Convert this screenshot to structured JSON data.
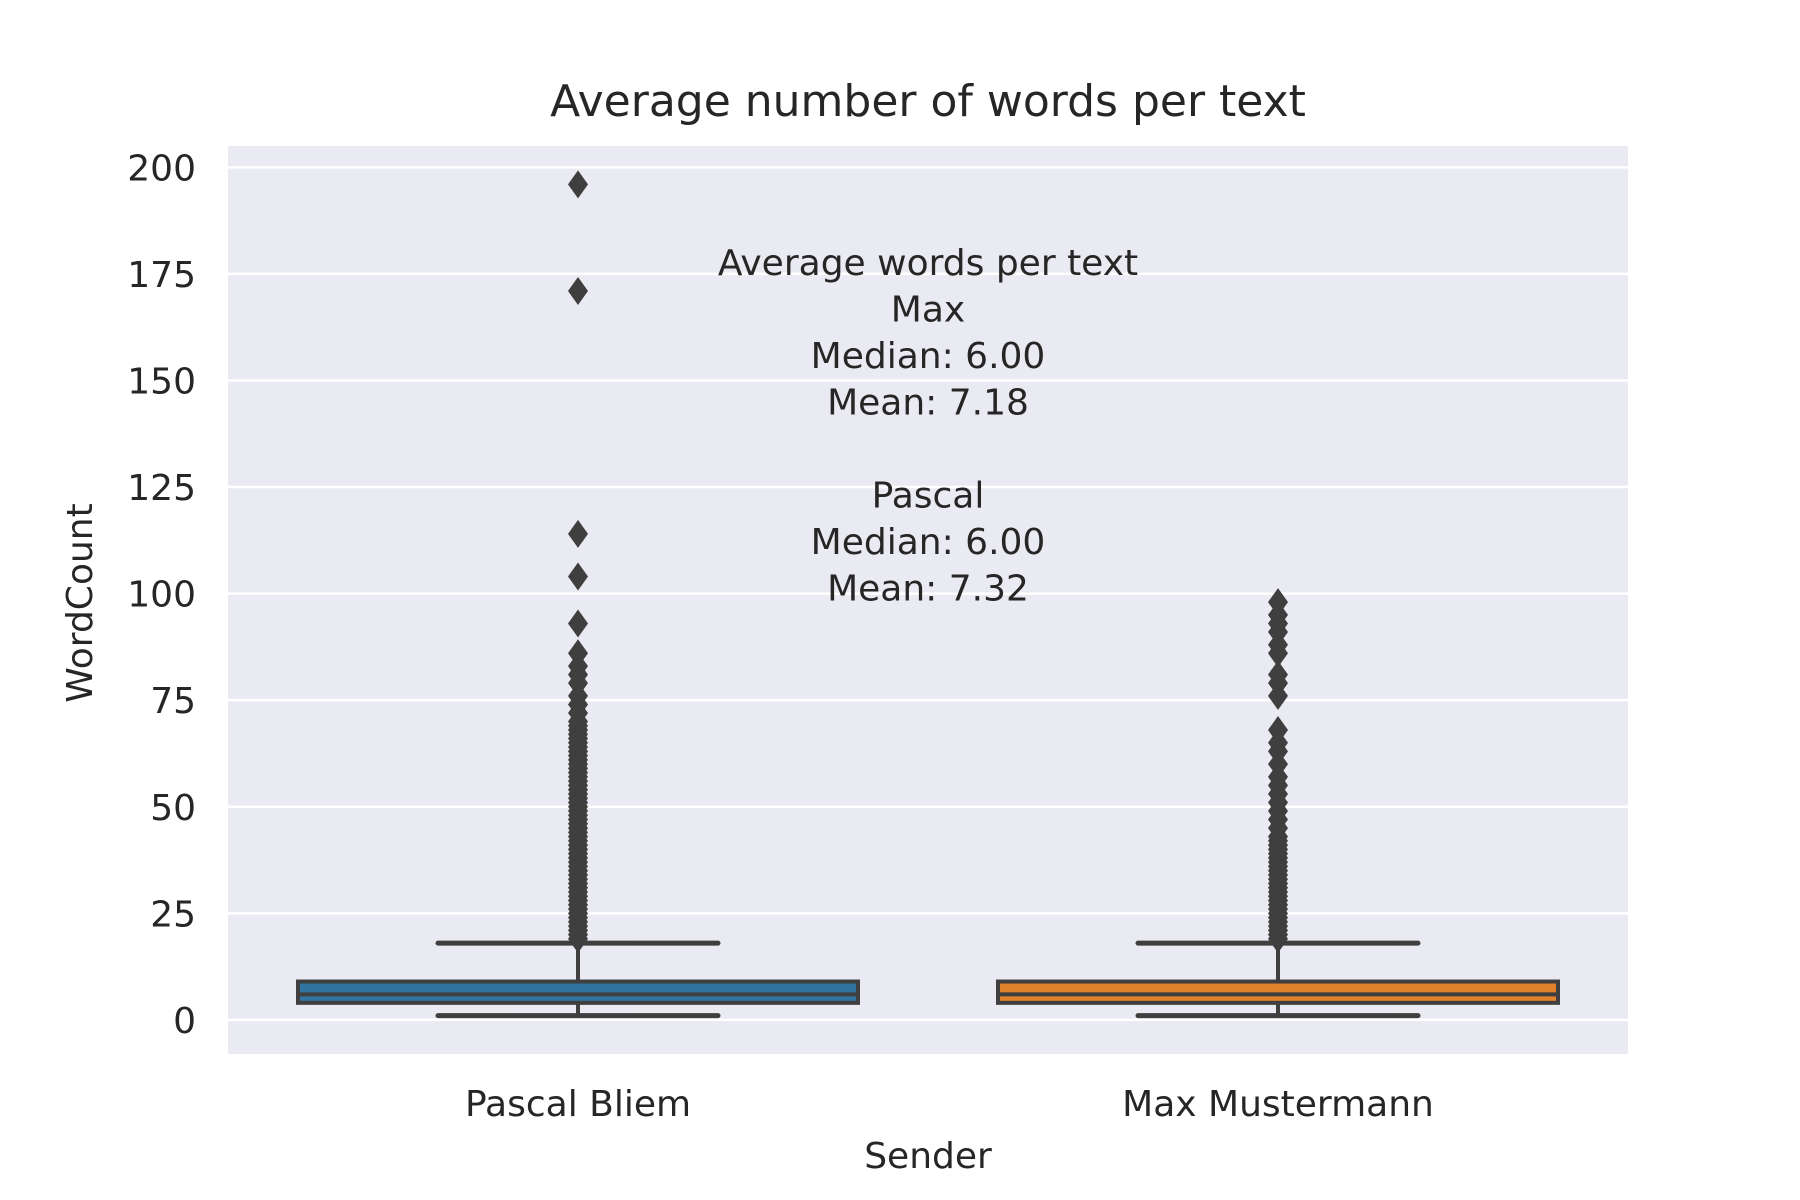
{
  "chart_data": {
    "type": "box",
    "title": "Average number of words per text",
    "xlabel": "Sender",
    "ylabel": "WordCount",
    "categories": [
      "Pascal Bliem",
      "Max Mustermann"
    ],
    "ylim": [
      -8,
      205
    ],
    "yticks": [
      0,
      25,
      50,
      75,
      100,
      125,
      150,
      175,
      200
    ],
    "grid": true,
    "background": "#eaeaf2",
    "series": [
      {
        "category": "Pascal Bliem",
        "color": "#3274a1",
        "whisker_low": 1,
        "q1": 4,
        "median": 6,
        "q3": 9,
        "whisker_high": 18,
        "outliers": [
          19,
          20,
          21,
          22,
          23,
          24,
          25,
          26,
          27,
          28,
          29,
          30,
          31,
          32,
          33,
          34,
          35,
          36,
          37,
          38,
          39,
          40,
          41,
          42,
          43,
          44,
          45,
          46,
          47,
          48,
          49,
          50,
          51,
          52,
          53,
          54,
          55,
          56,
          57,
          58,
          59,
          60,
          61,
          62,
          63,
          64,
          65,
          66,
          67,
          68,
          69,
          70,
          72,
          74,
          76,
          79,
          81,
          83,
          86,
          93,
          104,
          114,
          171,
          196
        ]
      },
      {
        "category": "Max Mustermann",
        "color": "#e1812c",
        "whisker_low": 1,
        "q1": 4,
        "median": 6,
        "q3": 9,
        "whisker_high": 18,
        "outliers": [
          19,
          20,
          21,
          22,
          23,
          24,
          25,
          26,
          27,
          28,
          29,
          30,
          31,
          32,
          33,
          34,
          35,
          36,
          37,
          38,
          39,
          40,
          41,
          42,
          43,
          45,
          47,
          49,
          51,
          53,
          55,
          57,
          60,
          63,
          65,
          68,
          76,
          79,
          81,
          86,
          88,
          91,
          93,
          95,
          98
        ]
      }
    ],
    "annotation": {
      "lines": [
        "Average words per text",
        "Max",
        "Median: 6.00",
        "Mean: 7.18",
        "",
        "Pascal",
        "Median: 6.00",
        "Mean: 7.32"
      ]
    }
  }
}
